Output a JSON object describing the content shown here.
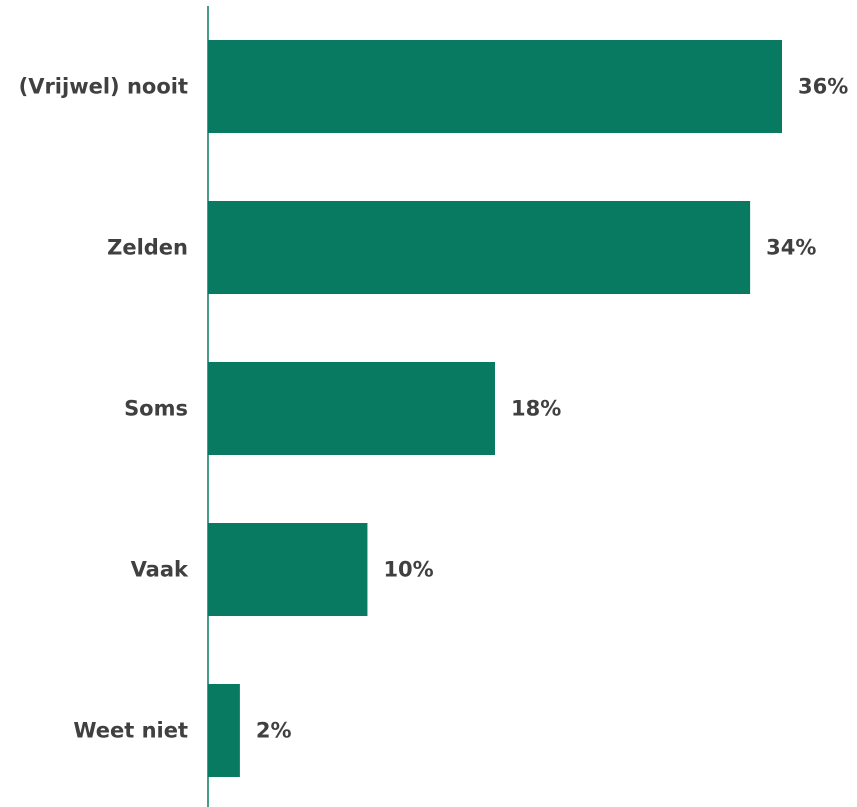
{
  "chart_data": {
    "type": "bar",
    "orientation": "horizontal",
    "categories": [
      "(Vrijwel) nooit",
      "Zelden",
      "Soms",
      "Vaak",
      "Weet niet"
    ],
    "values": [
      36,
      34,
      18,
      10,
      2
    ],
    "value_labels": [
      "36%",
      "34%",
      "18%",
      "10%",
      "2%"
    ],
    "unit": "%",
    "xlim": [
      0,
      36
    ],
    "grid": false,
    "legend": "none"
  },
  "colors": {
    "bar": "#077a61",
    "axis": "#077a61",
    "text": "#404040"
  }
}
